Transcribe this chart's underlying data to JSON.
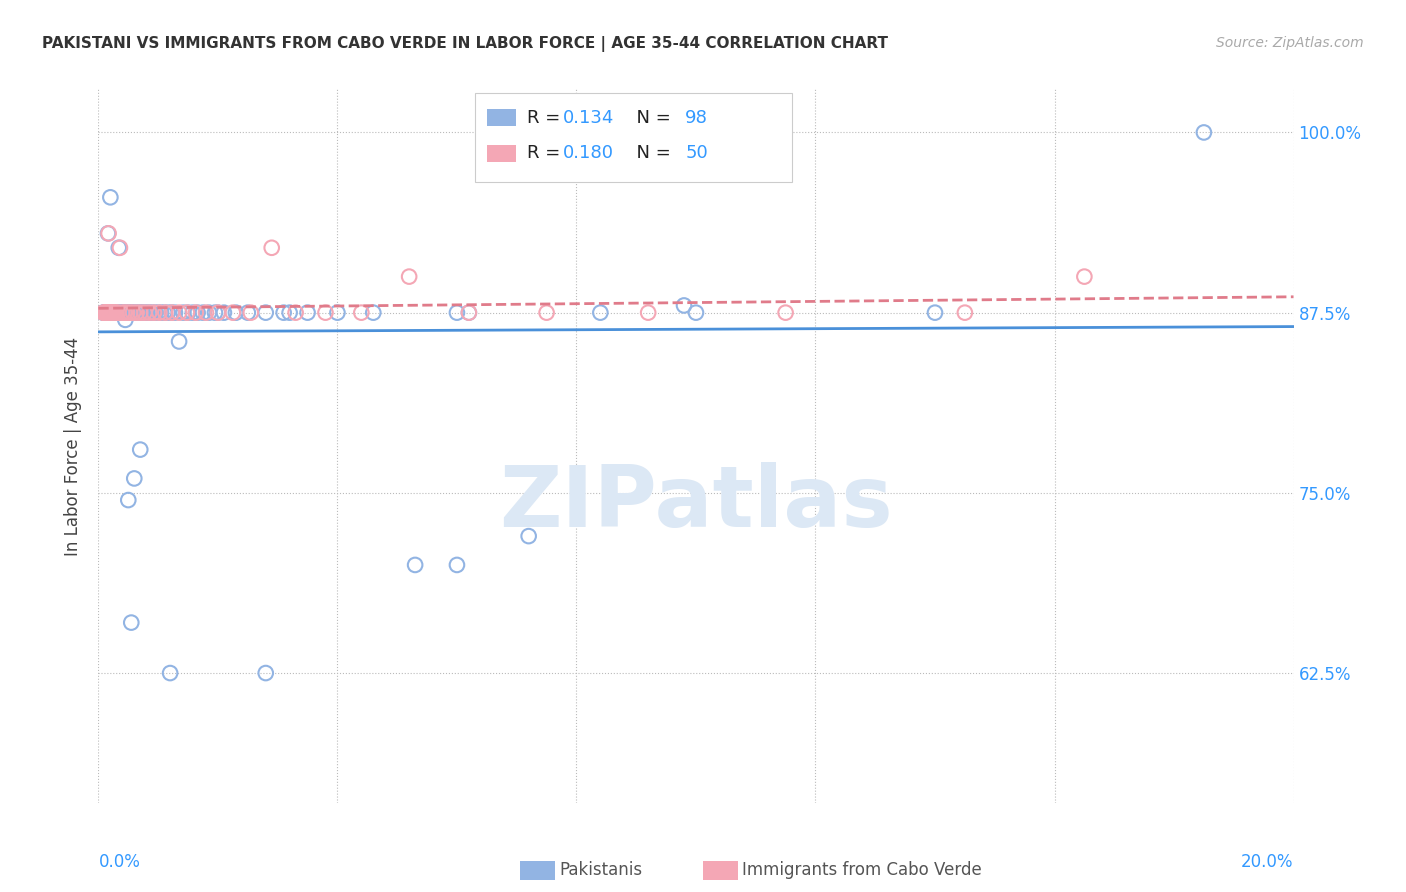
{
  "title": "PAKISTANI VS IMMIGRANTS FROM CABO VERDE IN LABOR FORCE | AGE 35-44 CORRELATION CHART",
  "source": "Source: ZipAtlas.com",
  "ylabel": "In Labor Force | Age 35-44",
  "ytick_labels": [
    "62.5%",
    "75.0%",
    "87.5%",
    "100.0%"
  ],
  "ytick_values": [
    0.625,
    0.75,
    0.875,
    1.0
  ],
  "xmin": 0.0,
  "xmax": 0.2,
  "ymin": 0.535,
  "ymax": 1.03,
  "legend_r1_label": "R = ",
  "legend_r1_val": "0.134",
  "legend_n1_label": "N = ",
  "legend_n1_val": "98",
  "legend_r2_label": "R = ",
  "legend_r2_val": "0.180",
  "legend_n2_label": "N = ",
  "legend_n2_val": "50",
  "blue_color": "#92b4e3",
  "pink_color": "#f4a7b5",
  "blue_line_color": "#4a90d9",
  "pink_line_color": "#e07b8a",
  "watermark": "ZIPatlas",
  "watermark_color": "#d0dff0",
  "pak_x": [
    0.0008,
    0.001,
    0.001,
    0.0011,
    0.0012,
    0.0012,
    0.0013,
    0.0013,
    0.0014,
    0.0014,
    0.0015,
    0.0015,
    0.0016,
    0.0016,
    0.0017,
    0.0017,
    0.0018,
    0.0019,
    0.002,
    0.002,
    0.0021,
    0.0022,
    0.0023,
    0.0024,
    0.0025,
    0.0026,
    0.0027,
    0.0028,
    0.003,
    0.0031,
    0.0032,
    0.0034,
    0.0035,
    0.0037,
    0.0038,
    0.004,
    0.0041,
    0.0043,
    0.0045,
    0.0047,
    0.0049,
    0.0051,
    0.0053,
    0.0055,
    0.0057,
    0.0059,
    0.0062,
    0.0065,
    0.0068,
    0.0071,
    0.0074,
    0.0078,
    0.0082,
    0.0086,
    0.009,
    0.0095,
    0.01,
    0.0105,
    0.011,
    0.0116,
    0.0122,
    0.0128,
    0.0135,
    0.0142,
    0.015,
    0.0158,
    0.0166,
    0.0175,
    0.0185,
    0.0195,
    0.021,
    0.023,
    0.025,
    0.028,
    0.031,
    0.035,
    0.04,
    0.046,
    0.053,
    0.062,
    0.072,
    0.084,
    0.098,
    0.0055,
    0.012,
    0.028,
    0.06,
    0.1,
    0.14,
    0.185,
    0.003,
    0.0045,
    0.02,
    0.032,
    0.06,
    0.006,
    0.005,
    0.007
  ],
  "pak_y": [
    0.875,
    0.875,
    0.875,
    0.875,
    0.875,
    0.875,
    0.875,
    0.875,
    0.875,
    0.875,
    0.875,
    0.875,
    0.875,
    0.93,
    0.875,
    0.875,
    0.875,
    0.875,
    0.875,
    0.955,
    0.875,
    0.875,
    0.875,
    0.875,
    0.875,
    0.875,
    0.875,
    0.875,
    0.875,
    0.875,
    0.875,
    0.92,
    0.875,
    0.875,
    0.875,
    0.875,
    0.875,
    0.875,
    0.875,
    0.875,
    0.875,
    0.875,
    0.875,
    0.875,
    0.875,
    0.875,
    0.875,
    0.875,
    0.875,
    0.875,
    0.875,
    0.875,
    0.875,
    0.875,
    0.875,
    0.875,
    0.875,
    0.875,
    0.875,
    0.875,
    0.875,
    0.875,
    0.855,
    0.875,
    0.875,
    0.875,
    0.875,
    0.875,
    0.875,
    0.875,
    0.875,
    0.875,
    0.875,
    0.875,
    0.875,
    0.875,
    0.875,
    0.875,
    0.7,
    0.875,
    0.72,
    0.875,
    0.88,
    0.66,
    0.625,
    0.625,
    0.7,
    0.875,
    0.875,
    1.0,
    0.875,
    0.87,
    0.875,
    0.875,
    0.875,
    0.76,
    0.745,
    0.78
  ],
  "cabo_x": [
    0.0008,
    0.001,
    0.0011,
    0.0012,
    0.0013,
    0.0014,
    0.0015,
    0.0016,
    0.0017,
    0.0018,
    0.0019,
    0.002,
    0.0022,
    0.0024,
    0.0026,
    0.0028,
    0.003,
    0.0033,
    0.0036,
    0.004,
    0.0044,
    0.0048,
    0.0053,
    0.0058,
    0.0064,
    0.007,
    0.0077,
    0.0085,
    0.0093,
    0.0102,
    0.0112,
    0.0123,
    0.0135,
    0.0148,
    0.0163,
    0.018,
    0.02,
    0.0225,
    0.0255,
    0.029,
    0.033,
    0.038,
    0.044,
    0.052,
    0.062,
    0.075,
    0.092,
    0.115,
    0.145,
    0.165
  ],
  "cabo_y": [
    0.875,
    0.875,
    0.875,
    0.875,
    0.875,
    0.875,
    0.875,
    0.875,
    0.93,
    0.875,
    0.875,
    0.875,
    0.875,
    0.875,
    0.875,
    0.875,
    0.875,
    0.875,
    0.92,
    0.875,
    0.875,
    0.875,
    0.875,
    0.875,
    0.875,
    0.875,
    0.875,
    0.875,
    0.875,
    0.875,
    0.875,
    0.875,
    0.875,
    0.875,
    0.875,
    0.875,
    0.875,
    0.875,
    0.875,
    0.92,
    0.875,
    0.875,
    0.875,
    0.9,
    0.875,
    0.875,
    0.875,
    0.875,
    0.875,
    0.9
  ]
}
